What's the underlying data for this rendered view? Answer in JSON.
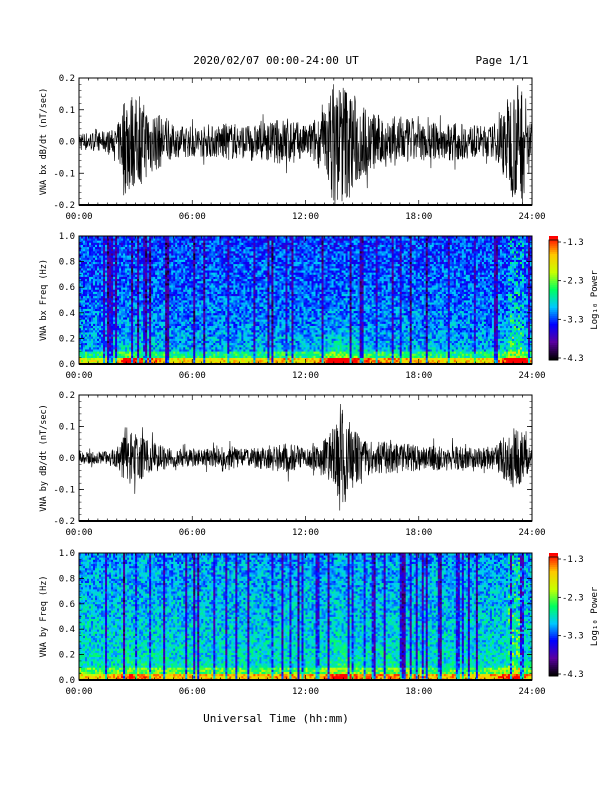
{
  "header": {
    "title": "2020/02/07  00:00-24:00 UT",
    "page": "Page 1/1"
  },
  "xaxis": {
    "label": "Universal Time (hh:mm)",
    "ticks": [
      "00:00",
      "06:00",
      "12:00",
      "18:00",
      "24:00"
    ],
    "range_hours": [
      0,
      24
    ]
  },
  "colorbar": {
    "label": "Log₁₀ Power",
    "ticks": [
      "-1.3",
      "-2.3",
      "-3.3",
      "-4.3"
    ],
    "range": [
      -4.3,
      -1.3
    ],
    "colors": [
      "#000000",
      "#5a00a0",
      "#0000ff",
      "#00c8ff",
      "#00ff60",
      "#c8ff00",
      "#ffc800",
      "#ff0000"
    ]
  },
  "chart_data": [
    {
      "type": "line",
      "id": "bx-dbdt",
      "ylabel": "VNA bx dB/dt (nT/sec)",
      "ylim": [
        -0.2,
        0.2
      ],
      "yticks": [
        "0.2",
        "0.1",
        "0.0",
        "-0.1",
        "-0.2"
      ],
      "x": [
        0,
        1,
        2,
        2.5,
        3,
        3.5,
        4,
        5,
        6,
        7,
        8,
        9,
        10,
        11,
        12,
        13,
        13.5,
        14,
        14.5,
        15,
        16,
        17,
        18,
        19,
        20,
        21,
        22,
        23,
        23.5,
        24
      ],
      "amplitude": [
        0.03,
        0.03,
        0.04,
        0.18,
        0.14,
        0.12,
        0.1,
        0.05,
        0.05,
        0.05,
        0.06,
        0.05,
        0.06,
        0.08,
        0.05,
        0.1,
        0.2,
        0.2,
        0.16,
        0.12,
        0.08,
        0.08,
        0.06,
        0.06,
        0.06,
        0.05,
        0.05,
        0.18,
        0.2,
        0.05
      ]
    },
    {
      "type": "heatmap",
      "id": "bx-freq",
      "ylabel": "VNA bx Freq (Hz)",
      "ylim": [
        0,
        1
      ],
      "yticks": [
        "1.0",
        "0.8",
        "0.6",
        "0.4",
        "0.2",
        "0.0"
      ],
      "zlim": [
        -4.3,
        -1.3
      ]
    },
    {
      "type": "line",
      "id": "by-dbdt",
      "ylabel": "VNA by dB/dt (nT/sec)",
      "ylim": [
        -0.2,
        0.2
      ],
      "yticks": [
        "0.2",
        "0.1",
        "0.0",
        "-0.1",
        "-0.2"
      ],
      "x": [
        0,
        1,
        2,
        2.5,
        3,
        3.5,
        4,
        5,
        6,
        7,
        8,
        9,
        10,
        11,
        12,
        13,
        13.5,
        14,
        14.5,
        15,
        16,
        17,
        18,
        19,
        20,
        21,
        22,
        23,
        23.5,
        24
      ],
      "amplitude": [
        0.02,
        0.02,
        0.03,
        0.09,
        0.08,
        0.06,
        0.05,
        0.03,
        0.03,
        0.03,
        0.04,
        0.03,
        0.04,
        0.05,
        0.03,
        0.06,
        0.1,
        0.16,
        0.1,
        0.06,
        0.05,
        0.05,
        0.04,
        0.04,
        0.04,
        0.03,
        0.04,
        0.1,
        0.08,
        0.03
      ]
    },
    {
      "type": "heatmap",
      "id": "by-freq",
      "ylabel": "VNA by Freq (Hz)",
      "ylim": [
        0,
        1
      ],
      "yticks": [
        "1.0",
        "0.8",
        "0.6",
        "0.4",
        "0.2",
        "0.0"
      ],
      "zlim": [
        -4.3,
        -1.3
      ]
    }
  ]
}
